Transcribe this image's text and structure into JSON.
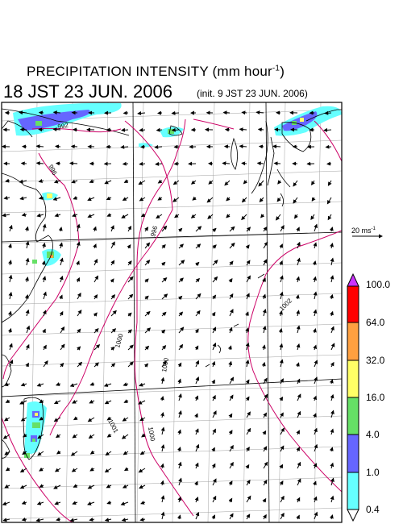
{
  "title": {
    "text": "PRECIPITATION INTENSITY (mm hour",
    "unit_exponent": "-1",
    "closing": ")"
  },
  "valid_time": "18 JST 23 JUN. 2006",
  "init_time": "(init. 9 JST 23 JUN. 2006)",
  "reference_vector": {
    "value": "20 ms",
    "exponent": "-1"
  },
  "contour_labels": [
    "992",
    "996",
    "996",
    "1000",
    "1000",
    "1000",
    "1001",
    "1002"
  ],
  "colorbar": {
    "labels": [
      "100.0",
      "64.0",
      "32.0",
      "16.0",
      "4.0",
      "1.0",
      "0.4"
    ],
    "colors": [
      "#ff0000",
      "#ffa040",
      "#ffff66",
      "#66e066",
      "#6666ff",
      "#66ffff"
    ],
    "over_color": "#cc33ff",
    "under_color": "#ffffff"
  },
  "colors": {
    "contour": "#cc0066",
    "grid": "#a0a0a0",
    "coast": "#000000"
  }
}
